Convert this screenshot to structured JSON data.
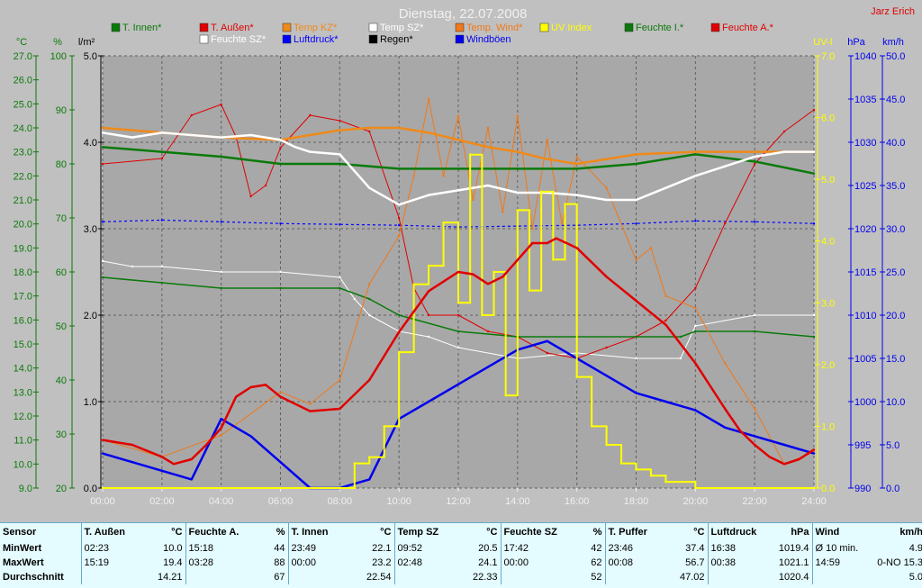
{
  "title": "Dienstag, 22.07.2008",
  "author": "Jarz Erich",
  "colors": {
    "t_innen": "#0a7a0a",
    "t_aussen": "#e00000",
    "temp_kz": "#f08a18",
    "temp_sz": "#ffffff",
    "temp_wind": "#f07818",
    "uv": "#ffff00",
    "feuchte_i": "#0a7a0a",
    "feuchte_a": "#e00000",
    "feuchte_sz": "#ffffff",
    "luftdruck": "#0000ff",
    "regen": "#000000",
    "windboeen": "#0000ee",
    "axis_green": "#0a7a0a",
    "axis_blue": "#0000ee",
    "axis_black": "#000000",
    "axis_yellow": "#ffff00"
  },
  "legend": [
    {
      "name": "legend-t-innen",
      "label": "T. Innen*",
      "color": "#0a7a0a"
    },
    {
      "name": "legend-t-aussen",
      "label": "T. Außen*",
      "color": "#e00000"
    },
    {
      "name": "legend-temp-kz",
      "label": "Temp KZ*",
      "color": "#f08a18"
    },
    {
      "name": "legend-temp-sz",
      "label": "Temp SZ*",
      "color": "#ffffff"
    },
    {
      "name": "legend-temp-wind",
      "label": "Temp. Wind*",
      "color": "#f07818"
    },
    {
      "name": "legend-uv-index",
      "label": "UV Index",
      "color": "#ffff00"
    },
    {
      "name": "legend-feuchte-i",
      "label": "Feuchte I.*",
      "color": "#0a7a0a"
    },
    {
      "name": "legend-feuchte-a",
      "label": "Feuchte A.*",
      "color": "#e00000"
    },
    {
      "name": "legend-feuchte-sz",
      "label": "Feuchte SZ*",
      "color": "#ffffff"
    },
    {
      "name": "legend-luftdruck",
      "label": "Luftdruck*",
      "color": "#0000ff"
    },
    {
      "name": "legend-regen",
      "label": "Regen*",
      "color": "#000000"
    },
    {
      "name": "legend-windboeen",
      "label": "Windböen",
      "color": "#0000ee"
    }
  ],
  "axes": {
    "temp": {
      "unit": "°C",
      "ticks": [
        "27.0",
        "26.0",
        "25.0",
        "24.0",
        "23.0",
        "22.0",
        "21.0",
        "20.0",
        "19.0",
        "18.0",
        "17.0",
        "16.0",
        "15.0",
        "14.0",
        "13.0",
        "12.0",
        "11.0",
        "10.0",
        "9.0"
      ]
    },
    "humidity": {
      "unit": "%",
      "ticks": [
        "100",
        "90",
        "80",
        "70",
        "60",
        "50",
        "40",
        "30",
        "20"
      ]
    },
    "rain": {
      "unit": "l/m²",
      "ticks": [
        "5.0",
        "4.0",
        "3.0",
        "2.0",
        "1.0",
        "0.0"
      ]
    },
    "uv": {
      "unit": "UV-I",
      "ticks": [
        "7.0",
        "6.0",
        "5.0",
        "4.0",
        "3.0",
        "2.0",
        "1.0",
        "0.0"
      ]
    },
    "pressure": {
      "unit": "hPa",
      "ticks": [
        "1040",
        "1035",
        "1030",
        "1025",
        "1020",
        "1015",
        "1010",
        "1005",
        "1000",
        "995",
        "990"
      ]
    },
    "wind": {
      "unit": "km/h",
      "ticks": [
        "50.0",
        "45.0",
        "40.0",
        "35.0",
        "30.0",
        "25.0",
        "20.0",
        "15.0",
        "10.0",
        "5.0",
        "0.0"
      ]
    },
    "time": {
      "ticks": [
        "00:00",
        "02:00",
        "04:00",
        "06:00",
        "08:00",
        "10:00",
        "12:00",
        "14:00",
        "16:00",
        "18:00",
        "20:00",
        "22:00",
        "24:00"
      ]
    }
  },
  "chart_data": {
    "type": "line",
    "title": "Dienstag, 22.07.2008",
    "x_unit": "hour of day",
    "xlim": [
      0,
      24
    ],
    "ylim_temp": [
      9,
      27
    ],
    "ylim_humidity": [
      20,
      100
    ],
    "ylim_rain": [
      0,
      5
    ],
    "ylim_uv": [
      0,
      7
    ],
    "ylim_pressure": [
      990,
      1040
    ],
    "ylim_wind": [
      0,
      50
    ],
    "grid": true,
    "series": [
      {
        "name": "T. Außen*",
        "axis": "temp",
        "x": [
          0,
          1,
          2,
          2.4,
          3,
          3.5,
          4,
          4.5,
          5,
          5.5,
          6,
          7,
          8,
          9,
          10,
          11,
          12,
          12.5,
          13,
          13.5,
          14,
          14.5,
          15,
          15.3,
          16,
          17,
          18,
          19,
          20,
          21,
          21.5,
          22,
          22.5,
          23,
          23.5,
          24
        ],
        "y": [
          11.0,
          10.8,
          10.3,
          10.0,
          10.2,
          10.8,
          11.5,
          12.8,
          13.2,
          13.3,
          12.8,
          12.2,
          12.3,
          13.5,
          15.5,
          17.2,
          18.0,
          17.9,
          17.5,
          17.8,
          18.5,
          19.2,
          19.2,
          19.4,
          19.0,
          17.8,
          16.8,
          15.8,
          14.2,
          12.3,
          11.4,
          10.8,
          10.3,
          10.0,
          10.2,
          10.6
        ]
      },
      {
        "name": "T. Innen*",
        "axis": "temp",
        "x": [
          0,
          2,
          4,
          6,
          8,
          10,
          12,
          14,
          16,
          18,
          20,
          22,
          24
        ],
        "y": [
          23.2,
          23.0,
          22.8,
          22.5,
          22.5,
          22.3,
          22.3,
          22.3,
          22.3,
          22.5,
          22.9,
          22.6,
          22.1
        ]
      },
      {
        "name": "Temp SZ*",
        "axis": "temp",
        "x": [
          0,
          1,
          2,
          3,
          4,
          5,
          6,
          6.5,
          7,
          8,
          9,
          10,
          11,
          12,
          13,
          14,
          15,
          16,
          17,
          18,
          19,
          20,
          21,
          22,
          23,
          24
        ],
        "y": [
          23.8,
          23.6,
          23.8,
          23.7,
          23.6,
          23.7,
          23.5,
          23.2,
          23.0,
          22.9,
          21.5,
          20.8,
          21.2,
          21.4,
          21.6,
          21.3,
          21.3,
          21.2,
          21.0,
          21.0,
          21.5,
          22.0,
          22.4,
          22.8,
          23.0,
          23.0
        ]
      },
      {
        "name": "Temp KZ*",
        "axis": "temp",
        "x": [
          0,
          2,
          4,
          6,
          8,
          9,
          10,
          11,
          12,
          13,
          14,
          15,
          16,
          18,
          20,
          22,
          24
        ],
        "y": [
          24.0,
          23.8,
          23.6,
          23.5,
          23.9,
          24.0,
          24.0,
          23.8,
          23.5,
          23.2,
          23.0,
          22.7,
          22.5,
          22.9,
          23.0,
          23.0,
          23.0
        ]
      },
      {
        "name": "Feuchte A.*",
        "axis": "humidity",
        "x": [
          0,
          2,
          3,
          4,
          4.5,
          5,
          5.5,
          6,
          7,
          8,
          9,
          10,
          10.5,
          11,
          12,
          13,
          14,
          15,
          16,
          17,
          18,
          19,
          20,
          21,
          22,
          23,
          24
        ],
        "y": [
          80,
          81,
          89,
          91,
          85,
          74,
          76,
          83,
          89,
          88,
          86,
          70,
          57,
          52,
          52,
          49,
          48,
          45,
          44,
          46,
          48,
          51,
          57,
          69,
          80,
          86,
          90
        ]
      },
      {
        "name": "Feuchte I.*",
        "axis": "humidity",
        "x": [
          0,
          2,
          4,
          6,
          8,
          9,
          10,
          12,
          14,
          16,
          18,
          19.5,
          20,
          22,
          24
        ],
        "y": [
          59,
          58,
          57,
          57,
          57,
          55,
          52,
          49,
          48,
          48,
          48,
          48,
          49,
          49,
          48
        ]
      },
      {
        "name": "Feuchte SZ*",
        "axis": "humidity",
        "x": [
          0,
          1,
          2,
          4,
          6,
          8,
          8.5,
          9,
          10,
          11,
          12,
          14,
          16,
          18,
          19.5,
          20,
          22,
          24
        ],
        "y": [
          62,
          61,
          61,
          60,
          60,
          59,
          55,
          52,
          49,
          48,
          46,
          44,
          45,
          44,
          44,
          50,
          52,
          52
        ]
      },
      {
        "name": "Temp. Wind*",
        "axis": "temp",
        "x": [
          0,
          2,
          4,
          6,
          7,
          8,
          9,
          10,
          10.5,
          11,
          11.5,
          12,
          12.5,
          13,
          13.5,
          14,
          14.5,
          15,
          15.5,
          16,
          17,
          18,
          18.5,
          19,
          20,
          21,
          22,
          23,
          24
        ],
        "y": [
          11.0,
          10.3,
          11.2,
          13.0,
          12.5,
          13.5,
          17.5,
          19.5,
          22.0,
          25.2,
          22.0,
          24.5,
          21.0,
          24.0,
          20.5,
          24.5,
          19.8,
          23.5,
          20.0,
          22.8,
          21.5,
          18.5,
          19.0,
          17.0,
          16.5,
          14.2,
          12.3,
          10.0,
          10.5
        ]
      },
      {
        "name": "UV Index",
        "axis": "uv",
        "x": [
          0,
          8,
          8.5,
          9,
          9.5,
          10,
          10.5,
          11,
          11.5,
          12,
          12.4,
          12.8,
          13.2,
          13.6,
          14,
          14.4,
          14.8,
          15.2,
          15.6,
          16,
          16.5,
          17,
          17.5,
          18,
          18.5,
          19,
          20,
          24
        ],
        "y": [
          0,
          0,
          0.4,
          0.5,
          1.0,
          2.2,
          3.3,
          3.6,
          4.3,
          3.0,
          5.4,
          2.8,
          3.5,
          1.5,
          4.5,
          3.2,
          4.8,
          3.7,
          4.6,
          1.8,
          1.0,
          0.7,
          0.4,
          0.3,
          0.2,
          0.1,
          0,
          0
        ]
      },
      {
        "name": "Luftdruck*",
        "axis": "pressure",
        "x": [
          0,
          2,
          4,
          6,
          8,
          10,
          12,
          14,
          16,
          18,
          20,
          22,
          24
        ],
        "y": [
          1020.8,
          1021.0,
          1020.8,
          1020.6,
          1020.5,
          1020.4,
          1020.2,
          1020.3,
          1020.4,
          1020.6,
          1020.9,
          1020.8,
          1020.6
        ]
      },
      {
        "name": "Windböen",
        "axis": "wind",
        "x": [
          0,
          1,
          2,
          3,
          4,
          5,
          6,
          7,
          8,
          9,
          10,
          11,
          12,
          13,
          14,
          15,
          16,
          17,
          18,
          19,
          20,
          21,
          22,
          23,
          24
        ],
        "y": [
          4,
          3,
          2,
          1,
          8,
          6,
          3,
          0,
          0,
          1,
          8,
          10,
          12,
          14,
          16,
          17,
          15,
          13,
          11,
          10,
          9,
          7,
          6,
          5,
          4
        ]
      }
    ]
  },
  "stats": {
    "headers": [
      "Sensor",
      "T. Außen",
      "°C",
      "Feuchte A.",
      "%",
      "T. Innen",
      "°C",
      "Temp SZ",
      "°C",
      "Feuchte SZ",
      "%",
      "T. Puffer",
      "°C",
      "Luftdruck",
      "hPa",
      "Wind",
      "km/h"
    ],
    "rows": [
      [
        "MinWert",
        "02:23",
        "10.0",
        "15:18",
        "44",
        "23:49",
        "22.1",
        "09:52",
        "20.5",
        "17:42",
        "42",
        "23:46",
        "37.4",
        "16:38",
        "1019.4",
        "Ø 10 min.",
        "4.9"
      ],
      [
        "MaxWert",
        "15:19",
        "19.4",
        "03:28",
        "88",
        "00:00",
        "23.2",
        "02:48",
        "24.1",
        "00:00",
        "62",
        "00:08",
        "56.7",
        "00:38",
        "1021.1",
        "14:59",
        "0-NO 15.3"
      ],
      [
        "Durchschnitt",
        "",
        "14.21",
        "",
        "67",
        "",
        "22.54",
        "",
        "22.33",
        "",
        "52",
        "",
        "47.02",
        "",
        "1020.4",
        "",
        "5.0"
      ]
    ]
  }
}
